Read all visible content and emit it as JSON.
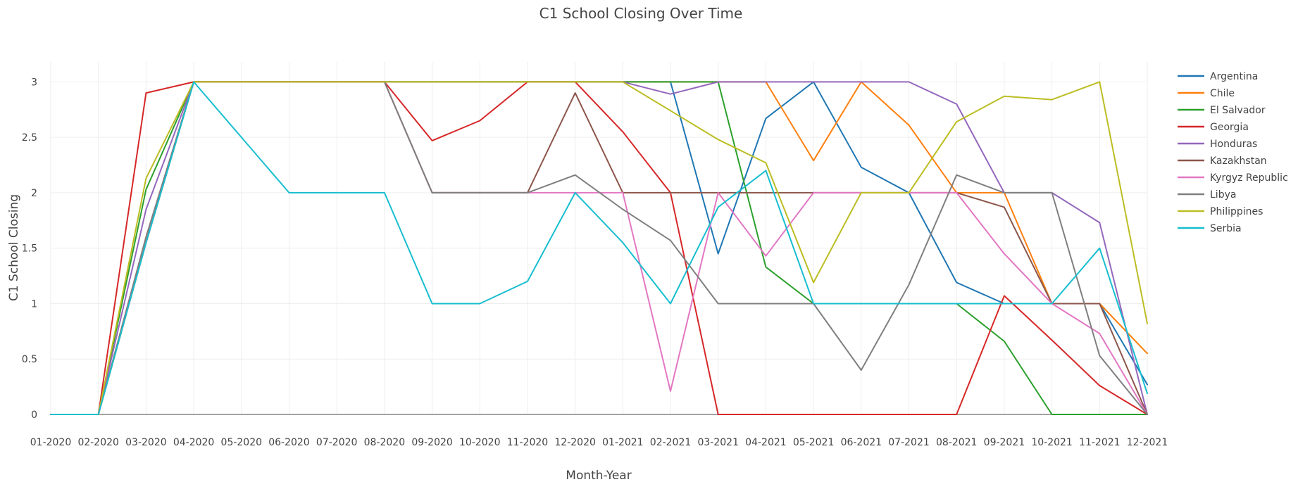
{
  "chart_data": {
    "type": "line",
    "title": "C1 School Closing Over Time",
    "xlabel": "Month-Year",
    "ylabel": "C1 School Closing",
    "ylim": [
      0,
      3.18
    ],
    "y_ticks": [
      0,
      0.5,
      1,
      1.5,
      2,
      2.5,
      3
    ],
    "y_tick_labels": [
      "0",
      "0.5",
      "1",
      "1.5",
      "2",
      "2.5",
      "3"
    ],
    "grid": true,
    "legend_position": "right",
    "x": [
      "01-2020",
      "02-2020",
      "03-2020",
      "04-2020",
      "05-2020",
      "06-2020",
      "07-2020",
      "08-2020",
      "09-2020",
      "10-2020",
      "11-2020",
      "12-2020",
      "01-2021",
      "02-2021",
      "03-2021",
      "04-2021",
      "05-2021",
      "06-2021",
      "07-2021",
      "08-2021",
      "09-2021",
      "10-2021",
      "11-2021",
      "12-2021"
    ],
    "series": [
      {
        "name": "Argentina",
        "color": "#1f77b4",
        "values": [
          0,
          0,
          1.55,
          3,
          3,
          3,
          3,
          3,
          3,
          3,
          3,
          3,
          3,
          3,
          1.45,
          2.67,
          3,
          2.23,
          2,
          1.19,
          1,
          1,
          1,
          0.27
        ]
      },
      {
        "name": "Chile",
        "color": "#ff7f0e",
        "values": [
          0,
          0,
          1.55,
          3,
          3,
          3,
          3,
          3,
          3,
          3,
          3,
          3,
          3,
          3,
          3,
          3,
          2.29,
          3,
          2.61,
          2,
          2,
          1,
          1,
          0.55
        ]
      },
      {
        "name": "El Salvador",
        "color": "#2ca02c",
        "values": [
          0,
          0,
          2.03,
          3,
          3,
          3,
          3,
          3,
          3,
          3,
          3,
          3,
          3,
          3,
          3,
          1.33,
          1,
          1,
          1,
          1,
          0.66,
          0,
          0,
          0
        ]
      },
      {
        "name": "Georgia",
        "color": "#d62728",
        "values": [
          0,
          0,
          2.9,
          3,
          3,
          3,
          3,
          3,
          2.47,
          2.65,
          3,
          3,
          2.55,
          2,
          0,
          0,
          0,
          0,
          0,
          0,
          1.07,
          0.67,
          0.26,
          0
        ]
      },
      {
        "name": "Honduras",
        "color": "#9467bd",
        "values": [
          0,
          0,
          1.85,
          3,
          3,
          3,
          3,
          3,
          3,
          3,
          3,
          3,
          3,
          2.89,
          3,
          3,
          3,
          3,
          3,
          2.8,
          2,
          2,
          1.73,
          0
        ]
      },
      {
        "name": "Kazakhstan",
        "color": "#8c564b",
        "values": [
          0,
          0,
          1.6,
          3,
          3,
          3,
          3,
          3,
          2,
          2,
          2,
          2.9,
          2,
          2,
          2,
          2,
          2,
          2,
          2,
          2,
          1.87,
          1,
          1,
          0
        ]
      },
      {
        "name": "Kyrgyz Republic",
        "color": "#e377c2",
        "values": [
          0,
          0,
          1.6,
          3,
          3,
          3,
          3,
          3,
          2,
          2,
          2,
          2,
          2,
          0.21,
          2,
          1.43,
          2,
          2,
          2,
          2,
          1.45,
          1,
          0.73,
          0
        ]
      },
      {
        "name": "Libya",
        "color": "#7f7f7f",
        "values": [
          0,
          0,
          1.6,
          3,
          3,
          3,
          3,
          3,
          2,
          2,
          2,
          2.16,
          1.85,
          1.57,
          1,
          1,
          1,
          0.4,
          1.17,
          2.16,
          2,
          2,
          0.53,
          0
        ]
      },
      {
        "name": "Philippines",
        "color": "#bcbd22",
        "values": [
          0,
          0,
          2.13,
          3,
          3,
          3,
          3,
          3,
          3,
          3,
          3,
          3,
          3,
          2.74,
          2.48,
          2.27,
          1.19,
          2,
          2,
          2.64,
          2.87,
          2.84,
          3,
          0.82
        ]
      },
      {
        "name": "Serbia",
        "color": "#17becf",
        "values": [
          0,
          0,
          1.55,
          3,
          2.5,
          2,
          2,
          2,
          1,
          1,
          1.2,
          2,
          1.55,
          1,
          1.87,
          2.2,
          1,
          1,
          1,
          1,
          1,
          1,
          1.5,
          0.19
        ]
      }
    ]
  }
}
